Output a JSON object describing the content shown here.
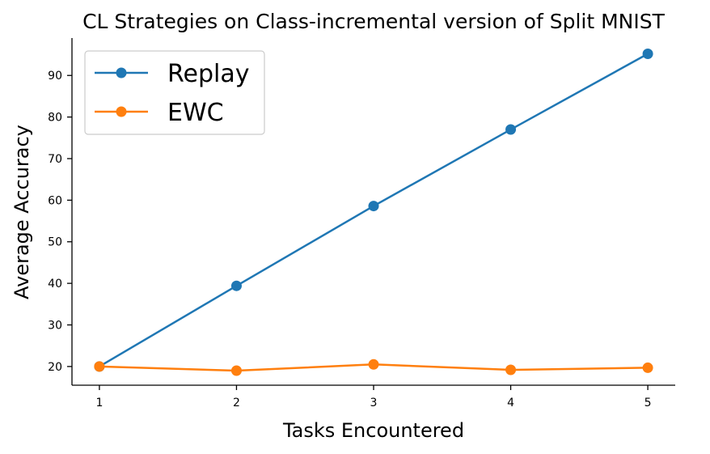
{
  "chart_data": {
    "type": "line",
    "title": "CL Strategies on Class-incremental version of Split MNIST",
    "xlabel": "Tasks Encountered",
    "ylabel": "Average Accuracy",
    "x": [
      1,
      2,
      3,
      4,
      5
    ],
    "xticks": [
      "1",
      "2",
      "3",
      "4",
      "5"
    ],
    "yticks": [
      "20",
      "30",
      "40",
      "50",
      "60",
      "70",
      "80",
      "90"
    ],
    "xlim": [
      0.8,
      5.2
    ],
    "ylim": [
      15.5,
      99
    ],
    "grid": false,
    "legend": "top-left",
    "series": [
      {
        "name": "Replay",
        "color": "#1f77b4",
        "values": [
          20.0,
          39.4,
          58.6,
          77.0,
          95.2
        ]
      },
      {
        "name": "EWC",
        "color": "#ff7f0e",
        "values": [
          20.0,
          19.0,
          20.5,
          19.2,
          19.7
        ]
      }
    ]
  }
}
